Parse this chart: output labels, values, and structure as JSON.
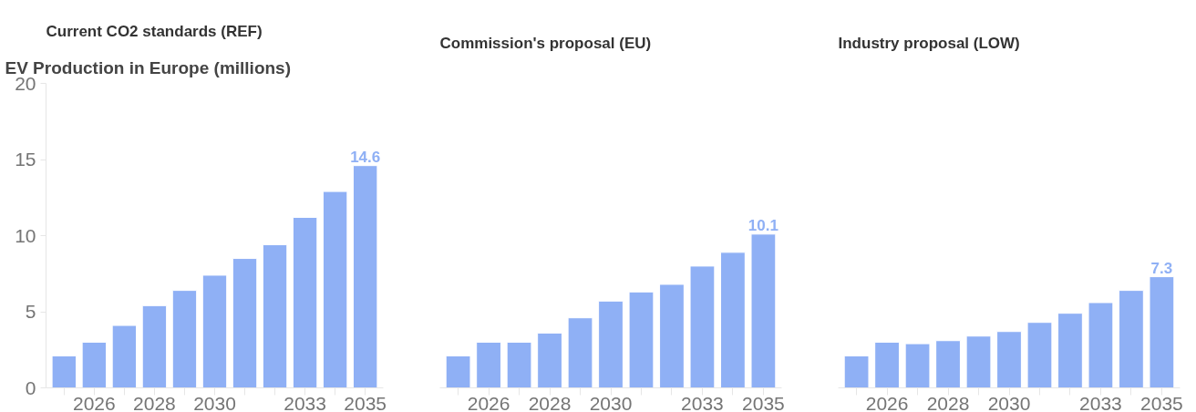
{
  "chart_data": [
    {
      "type": "bar",
      "title": "Current CO2 standards (REF)",
      "ylabel": "EV Production in Europe (millions)",
      "categories": [
        null,
        "2026",
        null,
        "2028",
        null,
        "2030",
        null,
        null,
        "2033",
        null,
        "2035"
      ],
      "values": [
        2.1,
        3.0,
        4.1,
        5.4,
        6.4,
        7.4,
        8.5,
        9.4,
        11.2,
        12.9,
        14.6
      ],
      "color": "#8fb0f5",
      "value_labels": [
        null,
        null,
        null,
        null,
        null,
        null,
        null,
        null,
        null,
        null,
        "14.6"
      ],
      "ylim": [
        0,
        20
      ],
      "yticks": [
        0,
        5,
        10,
        15,
        20
      ],
      "grid": false
    },
    {
      "type": "bar",
      "title": "Commission's proposal (EU)",
      "categories": [
        null,
        "2026",
        null,
        "2028",
        null,
        "2030",
        null,
        null,
        "2033",
        null,
        "2035"
      ],
      "values": [
        2.1,
        3.0,
        3.0,
        3.6,
        4.6,
        5.7,
        6.3,
        6.8,
        8.0,
        8.9,
        10.1
      ],
      "color": "#8fb0f5",
      "value_labels": [
        null,
        null,
        null,
        null,
        null,
        null,
        null,
        null,
        null,
        null,
        "10.1"
      ],
      "ylim": [
        0,
        20
      ],
      "yticks": [
        0,
        5,
        10,
        15,
        20
      ],
      "tick_labels": "x",
      "grid": false
    },
    {
      "type": "bar",
      "title": "Industry proposal (LOW)",
      "categories": [
        null,
        "2026",
        null,
        "2028",
        null,
        "2030",
        null,
        null,
        "2033",
        null,
        "2035"
      ],
      "values": [
        2.1,
        3.0,
        2.9,
        3.1,
        3.4,
        3.7,
        4.3,
        4.9,
        5.6,
        6.4,
        7.3
      ],
      "color": "#8fb0f5",
      "value_labels": [
        null,
        null,
        null,
        null,
        null,
        null,
        null,
        null,
        null,
        null,
        "7.3"
      ],
      "ylim": [
        0,
        20
      ],
      "yticks": [
        0,
        5,
        10,
        15,
        20
      ],
      "tick_labels": "x",
      "grid": false
    }
  ]
}
